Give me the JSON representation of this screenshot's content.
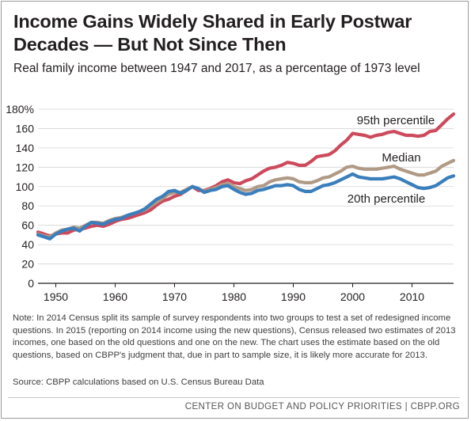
{
  "header": {
    "title": "Income Gains Widely Shared in Early Postwar Decades — But Not Since Then",
    "subtitle": "Real family income between 1947 and 2017, as a percentage of 1973 level"
  },
  "chart_data": {
    "type": "line",
    "title": "Income Gains Widely Shared in Early Postwar Decades — But Not Since Then",
    "subtitle": "Real family income between 1947 and 2017, as a percentage of 1973 level",
    "xlabel": "",
    "ylabel": "",
    "xlim": [
      1947,
      2017
    ],
    "ylim": [
      0,
      180
    ],
    "x_ticks": [
      1950,
      1960,
      1970,
      1980,
      1990,
      2000,
      2010
    ],
    "y_ticks": [
      0,
      20,
      40,
      60,
      80,
      100,
      120,
      140,
      160,
      180
    ],
    "y_tick_labels": [
      "0",
      "20",
      "40",
      "60",
      "80",
      "100",
      "120",
      "140",
      "160",
      "180%"
    ],
    "grid": true,
    "legend": "direct labels on lines",
    "x": [
      1947,
      1948,
      1949,
      1950,
      1951,
      1952,
      1953,
      1954,
      1955,
      1956,
      1957,
      1958,
      1959,
      1960,
      1961,
      1962,
      1963,
      1964,
      1965,
      1966,
      1967,
      1968,
      1969,
      1970,
      1971,
      1972,
      1973,
      1974,
      1975,
      1976,
      1977,
      1978,
      1979,
      1980,
      1981,
      1982,
      1983,
      1984,
      1985,
      1986,
      1987,
      1988,
      1989,
      1990,
      1991,
      1992,
      1993,
      1994,
      1995,
      1996,
      1997,
      1998,
      1999,
      2000,
      2001,
      2002,
      2003,
      2004,
      2005,
      2006,
      2007,
      2008,
      2009,
      2010,
      2011,
      2012,
      2013,
      2014,
      2015,
      2016,
      2017
    ],
    "series": [
      {
        "name": "95th percentile",
        "color": "#cc4a5c",
        "values": [
          53,
          51,
          49,
          51,
          52,
          52,
          55,
          56,
          57,
          59,
          60,
          59,
          61,
          64,
          66,
          67,
          69,
          71,
          73,
          76,
          81,
          85,
          87,
          90,
          92,
          96,
          100,
          96,
          96,
          98,
          101,
          105,
          107,
          104,
          103,
          106,
          108,
          112,
          116,
          119,
          120,
          122,
          125,
          124,
          122,
          122,
          126,
          131,
          132,
          133,
          137,
          143,
          148,
          155,
          154,
          153,
          151,
          153,
          154,
          156,
          157,
          155,
          153,
          153,
          152,
          153,
          157,
          158,
          164,
          170,
          175
        ]
      },
      {
        "name": "Median",
        "color": "#b09a85",
        "values": [
          51,
          49,
          48,
          52,
          55,
          56,
          58,
          57,
          60,
          63,
          63,
          62,
          65,
          67,
          68,
          70,
          72,
          74,
          76,
          80,
          84,
          88,
          92,
          94,
          94,
          97,
          100,
          98,
          95,
          97,
          99,
          102,
          103,
          100,
          98,
          96,
          97,
          100,
          101,
          105,
          107,
          108,
          109,
          108,
          105,
          104,
          104,
          106,
          109,
          110,
          113,
          116,
          120,
          121,
          119,
          118,
          118,
          118,
          119,
          120,
          121,
          118,
          116,
          114,
          112,
          112,
          114,
          116,
          121,
          124,
          127
        ]
      },
      {
        "name": "20th percentile",
        "color": "#3a7ebc",
        "values": [
          50,
          48,
          46,
          51,
          54,
          56,
          57,
          54,
          59,
          63,
          62,
          61,
          64,
          66,
          67,
          70,
          72,
          74,
          77,
          82,
          87,
          90,
          95,
          96,
          93,
          96,
          100,
          98,
          94,
          96,
          97,
          100,
          101,
          97,
          94,
          92,
          93,
          96,
          97,
          99,
          101,
          101,
          102,
          101,
          97,
          95,
          95,
          98,
          101,
          102,
          104,
          107,
          110,
          113,
          110,
          109,
          108,
          108,
          108,
          109,
          110,
          108,
          105,
          102,
          99,
          98,
          99,
          101,
          105,
          109,
          111
        ]
      }
    ],
    "line_labels": [
      "95th percentile",
      "Median",
      "20th percentile"
    ]
  },
  "note": {
    "text": "Note: In 2014 Census split its sample of survey respondents into two groups to test a set of redesigned income questions.  In 2015 (reporting on 2014 income using the new questions), Census released two estimates of 2013 incomes, one based on the old questions and one on the new.  The chart uses the estimate based on the old questions, based on CBPP's judgment that, due in part to sample size, it is likely more accurate for 2013."
  },
  "source": {
    "text": "Source: CBPP calculations based on U.S. Census Bureau Data"
  },
  "footer": {
    "text": "CENTER ON BUDGET AND POLICY PRIORITIES | CBPP.ORG"
  }
}
